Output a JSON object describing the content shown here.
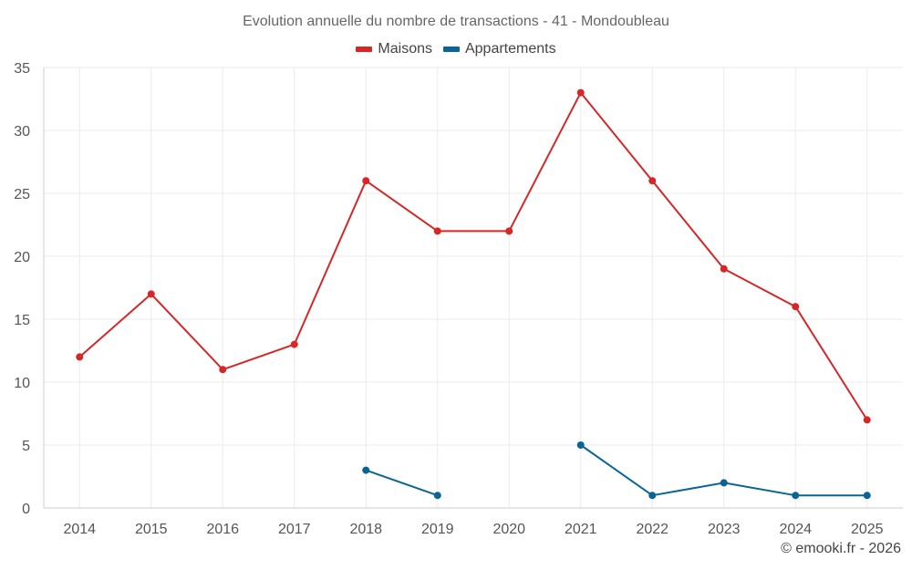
{
  "title": "Evolution annuelle du nombre de transactions - 41 - Mondoubleau",
  "credit": "© emooki.fr - 2026",
  "colors": {
    "maisons": "#d62728",
    "appartements": "#0a6496",
    "grid": "#ebebeb",
    "axis": "#cccccc"
  },
  "chart_data": {
    "type": "line",
    "title": "Evolution annuelle du nombre de transactions - 41 - Mondoubleau",
    "xlabel": "",
    "ylabel": "",
    "categories": [
      "2014",
      "2015",
      "2016",
      "2017",
      "2018",
      "2019",
      "2020",
      "2021",
      "2022",
      "2023",
      "2024",
      "2025"
    ],
    "ylim": [
      0,
      35
    ],
    "yticks": [
      0,
      5,
      10,
      15,
      20,
      25,
      30,
      35
    ],
    "grid": true,
    "legend": "top-center",
    "series": [
      {
        "name": "Maisons",
        "color": "#d62728",
        "values": [
          12,
          17,
          11,
          13,
          26,
          22,
          22,
          33,
          26,
          19,
          16,
          7
        ]
      },
      {
        "name": "Appartements",
        "color": "#0a6496",
        "values": [
          null,
          null,
          null,
          null,
          3,
          1,
          null,
          5,
          1,
          2,
          1,
          1
        ]
      }
    ]
  }
}
